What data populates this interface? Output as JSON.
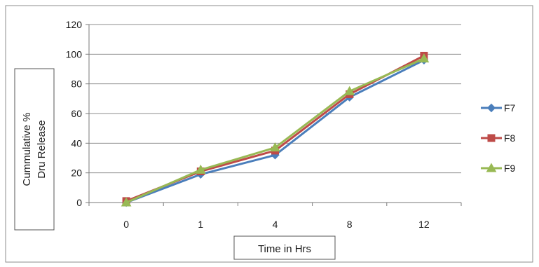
{
  "chart_data": {
    "type": "line",
    "categories": [
      "0",
      "1",
      "4",
      "8",
      "12"
    ],
    "series": [
      {
        "name": "F7",
        "values": [
          0,
          19,
          32,
          71,
          96
        ],
        "color": "#4a7ebb",
        "marker": "diamond"
      },
      {
        "name": "F8",
        "values": [
          1,
          21,
          35,
          73,
          99
        ],
        "color": "#be4b48",
        "marker": "square"
      },
      {
        "name": "F9",
        "values": [
          0,
          22,
          37,
          75,
          97
        ],
        "color": "#98b954",
        "marker": "triangle"
      }
    ],
    "xlabel": "Time in Hrs",
    "ylabel_lines": [
      "Cummulative %",
      "Dru Release"
    ],
    "ylim": [
      0,
      120
    ],
    "yticks": [
      "0",
      "20",
      "40",
      "60",
      "80",
      "100",
      "120"
    ],
    "grid": true,
    "legend_position": "right"
  }
}
